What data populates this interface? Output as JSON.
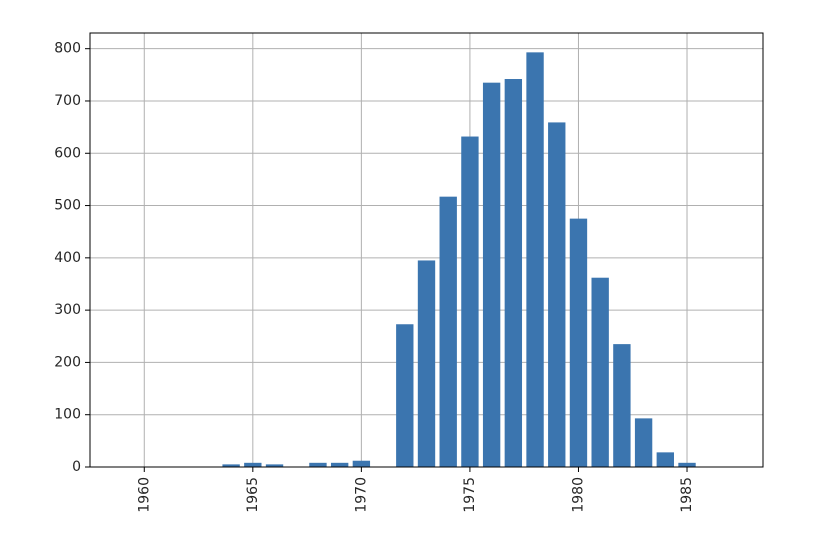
{
  "chart_data": {
    "type": "bar",
    "title": "",
    "xlabel": "",
    "ylabel": "",
    "x": [
      1964,
      1965,
      1966,
      1968,
      1969,
      1970,
      1972,
      1973,
      1974,
      1975,
      1976,
      1977,
      1978,
      1979,
      1980,
      1981,
      1982,
      1983,
      1984,
      1985
    ],
    "values": [
      5,
      8,
      5,
      8,
      8,
      12,
      273,
      395,
      517,
      632,
      735,
      742,
      793,
      659,
      475,
      362,
      235,
      93,
      28,
      8
    ],
    "xlim": [
      1957.5,
      1988.5
    ],
    "ylim": [
      0,
      830
    ],
    "xticks": [
      1960,
      1965,
      1970,
      1975,
      1980,
      1985
    ],
    "xtick_labels": [
      "1960",
      "1965",
      "1970",
      "1975",
      "1980",
      "1985"
    ],
    "yticks": [
      0,
      100,
      200,
      300,
      400,
      500,
      600,
      700,
      800
    ],
    "ytick_labels": [
      "0",
      "100",
      "200",
      "300",
      "400",
      "500",
      "600",
      "700",
      "800"
    ],
    "grid": true,
    "bar_color": "#3b75af",
    "grid_color": "#b0b0b0"
  }
}
